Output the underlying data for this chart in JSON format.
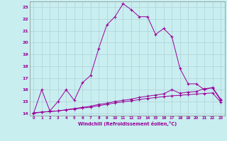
{
  "xlabel": "Windchill (Refroidissement éolien,°C)",
  "xlim": [
    -0.5,
    23.5
  ],
  "ylim": [
    13.8,
    23.5
  ],
  "yticks": [
    14,
    15,
    16,
    17,
    18,
    19,
    20,
    21,
    22,
    23
  ],
  "xticks": [
    0,
    1,
    2,
    3,
    4,
    5,
    6,
    7,
    8,
    9,
    10,
    11,
    12,
    13,
    14,
    15,
    16,
    17,
    18,
    19,
    20,
    21,
    22,
    23
  ],
  "background_color": "#c8eef0",
  "grid_color": "#b0d0d8",
  "line_color": "#990099",
  "line1_x": [
    0,
    1,
    2,
    3,
    4,
    5,
    6,
    7,
    8,
    9,
    10,
    11,
    12,
    13,
    14,
    15,
    16,
    17,
    18,
    19,
    20,
    21,
    22,
    23
  ],
  "line1_y": [
    14.0,
    16.0,
    14.2,
    15.0,
    16.0,
    15.1,
    16.6,
    17.2,
    19.5,
    21.5,
    22.2,
    23.3,
    22.8,
    22.2,
    22.2,
    20.7,
    21.2,
    20.5,
    17.8,
    16.5,
    16.5,
    16.0,
    16.2,
    15.2
  ],
  "line2_x": [
    0,
    1,
    2,
    3,
    4,
    5,
    6,
    7,
    8,
    9,
    10,
    11,
    12,
    13,
    14,
    15,
    16,
    17,
    18,
    19,
    20,
    21,
    22,
    23
  ],
  "line2_y": [
    14.05,
    14.1,
    14.15,
    14.2,
    14.3,
    14.4,
    14.5,
    14.6,
    14.75,
    14.85,
    15.0,
    15.1,
    15.2,
    15.35,
    15.45,
    15.55,
    15.65,
    16.0,
    15.7,
    15.8,
    15.85,
    16.1,
    16.15,
    15.1
  ],
  "line3_x": [
    0,
    1,
    2,
    3,
    4,
    5,
    6,
    7,
    8,
    9,
    10,
    11,
    12,
    13,
    14,
    15,
    16,
    17,
    18,
    19,
    20,
    21,
    22,
    23
  ],
  "line3_y": [
    14.0,
    14.1,
    14.15,
    14.2,
    14.28,
    14.36,
    14.44,
    14.52,
    14.65,
    14.75,
    14.88,
    14.97,
    15.06,
    15.16,
    15.26,
    15.33,
    15.42,
    15.48,
    15.53,
    15.58,
    15.63,
    15.68,
    15.73,
    14.95
  ]
}
